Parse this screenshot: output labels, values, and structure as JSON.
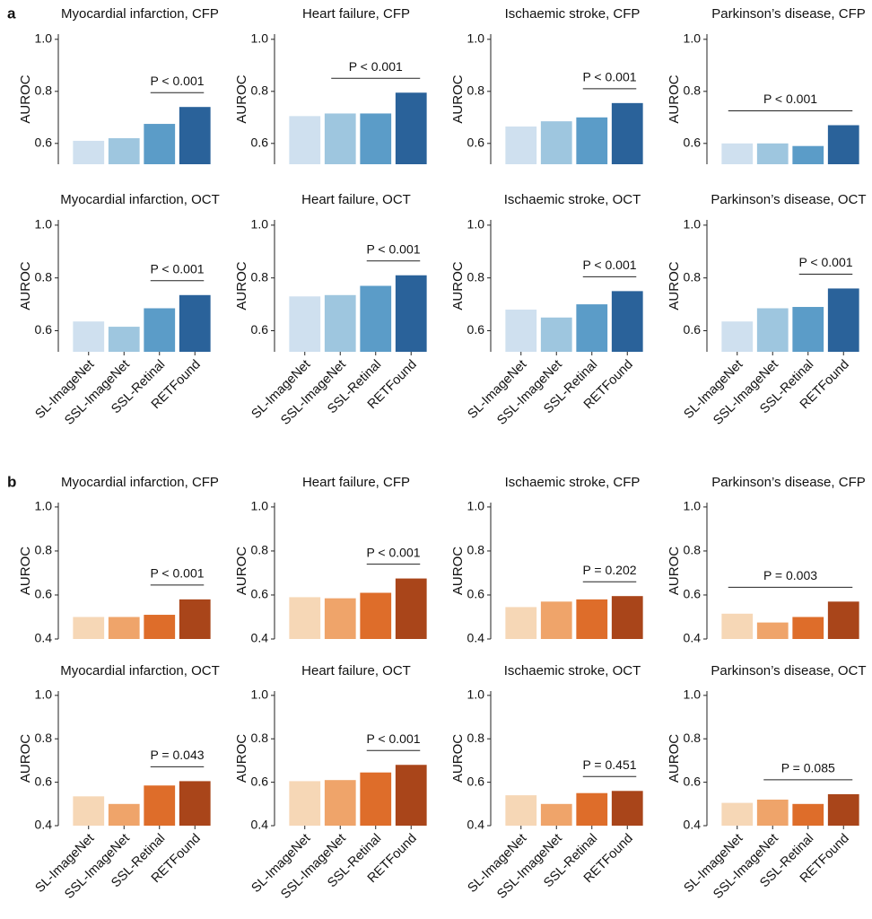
{
  "panel_labels": [
    "a",
    "b"
  ],
  "chart_data": [
    {
      "type": "bar",
      "title": "Myocardial infarction, CFP",
      "y_label": "AUROC",
      "categories": [
        "SL-ImageNet",
        "SSL-ImageNet",
        "SSL-Retinal",
        "RETFound"
      ],
      "values": [
        0.61,
        0.62,
        0.675,
        0.74
      ],
      "colors": [
        "#cfe0ef",
        "#9ec6df",
        "#5b9cc8",
        "#2a629a"
      ],
      "ylim": [
        0.52,
        1.02
      ],
      "yticks": [
        0.6,
        0.8,
        {
          "value": 1,
          "label": "1.0"
        }
      ],
      "p_label": "P < 0.001",
      "comparison": [
        "SSL-Retinal",
        "RETFound"
      ]
    },
    {
      "type": "bar",
      "title": "Heart failure, CFP",
      "y_label": "AUROC",
      "categories": [
        "SL-ImageNet",
        "SSL-ImageNet",
        "SSL-Retinal",
        "RETFound"
      ],
      "values": [
        0.705,
        0.715,
        0.715,
        0.795
      ],
      "colors": [
        "#cfe0ef",
        "#9ec6df",
        "#5b9cc8",
        "#2a629a"
      ],
      "ylim": [
        0.52,
        1.02
      ],
      "yticks": [
        0.6,
        0.8,
        {
          "value": 1,
          "label": "1.0"
        }
      ],
      "p_label": "P < 0.001",
      "comparison": [
        "SSL-ImageNet",
        "RETFound"
      ]
    },
    {
      "type": "bar",
      "title": "Ischaemic stroke, CFP",
      "y_label": "AUROC",
      "categories": [
        "SL-ImageNet",
        "SSL-ImageNet",
        "SSL-Retinal",
        "RETFound"
      ],
      "values": [
        0.665,
        0.685,
        0.7,
        0.755
      ],
      "colors": [
        "#cfe0ef",
        "#9ec6df",
        "#5b9cc8",
        "#2a629a"
      ],
      "ylim": [
        0.52,
        1.02
      ],
      "yticks": [
        0.6,
        0.8,
        {
          "value": 1,
          "label": "1.0"
        }
      ],
      "p_label": "P < 0.001",
      "comparison": [
        "SSL-Retinal",
        "RETFound"
      ]
    },
    {
      "type": "bar",
      "title": "Parkinson’s disease, CFP",
      "y_label": "AUROC",
      "categories": [
        "SL-ImageNet",
        "SSL-ImageNet",
        "SSL-Retinal",
        "RETFound"
      ],
      "values": [
        0.6,
        0.6,
        0.59,
        0.67
      ],
      "colors": [
        "#cfe0ef",
        "#9ec6df",
        "#5b9cc8",
        "#2a629a"
      ],
      "ylim": [
        0.52,
        1.02
      ],
      "yticks": [
        0.6,
        0.8,
        {
          "value": 1,
          "label": "1.0"
        }
      ],
      "p_label": "P < 0.001",
      "comparison": [
        "SL-ImageNet",
        "RETFound"
      ]
    },
    {
      "type": "bar",
      "title": "Myocardial infarction, OCT",
      "y_label": "AUROC",
      "categories": [
        "SL-ImageNet",
        "SSL-ImageNet",
        "SSL-Retinal",
        "RETFound"
      ],
      "values": [
        0.635,
        0.615,
        0.685,
        0.735
      ],
      "colors": [
        "#cfe0ef",
        "#9ec6df",
        "#5b9cc8",
        "#2a629a"
      ],
      "ylim": [
        0.52,
        1.02
      ],
      "yticks": [
        0.6,
        0.8,
        {
          "value": 1,
          "label": "1.0"
        }
      ],
      "p_label": "P < 0.001",
      "comparison": [
        "SSL-Retinal",
        "RETFound"
      ]
    },
    {
      "type": "bar",
      "title": "Heart failure, OCT",
      "y_label": "AUROC",
      "categories": [
        "SL-ImageNet",
        "SSL-ImageNet",
        "SSL-Retinal",
        "RETFound"
      ],
      "values": [
        0.73,
        0.735,
        0.77,
        0.81
      ],
      "colors": [
        "#cfe0ef",
        "#9ec6df",
        "#5b9cc8",
        "#2a629a"
      ],
      "ylim": [
        0.52,
        1.02
      ],
      "yticks": [
        0.6,
        0.8,
        {
          "value": 1,
          "label": "1.0"
        }
      ],
      "p_label": "P < 0.001",
      "comparison": [
        "SSL-Retinal",
        "RETFound"
      ]
    },
    {
      "type": "bar",
      "title": "Ischaemic stroke, OCT",
      "y_label": "AUROC",
      "categories": [
        "SL-ImageNet",
        "SSL-ImageNet",
        "SSL-Retinal",
        "RETFound"
      ],
      "values": [
        0.68,
        0.65,
        0.7,
        0.75
      ],
      "colors": [
        "#cfe0ef",
        "#9ec6df",
        "#5b9cc8",
        "#2a629a"
      ],
      "ylim": [
        0.52,
        1.02
      ],
      "yticks": [
        0.6,
        0.8,
        {
          "value": 1,
          "label": "1.0"
        }
      ],
      "p_label": "P < 0.001",
      "comparison": [
        "SSL-Retinal",
        "RETFound"
      ]
    },
    {
      "type": "bar",
      "title": "Parkinson’s disease, OCT",
      "y_label": "AUROC",
      "categories": [
        "SL-ImageNet",
        "SSL-ImageNet",
        "SSL-Retinal",
        "RETFound"
      ],
      "values": [
        0.635,
        0.685,
        0.69,
        0.76
      ],
      "colors": [
        "#cfe0ef",
        "#9ec6df",
        "#5b9cc8",
        "#2a629a"
      ],
      "ylim": [
        0.52,
        1.02
      ],
      "yticks": [
        0.6,
        0.8,
        {
          "value": 1,
          "label": "1.0"
        }
      ],
      "p_label": "P < 0.001",
      "comparison": [
        "SSL-Retinal",
        "RETFound"
      ]
    },
    {
      "type": "bar",
      "title": "Myocardial infarction, CFP",
      "y_label": "AUROC",
      "categories": [
        "SL-ImageNet",
        "SSL-ImageNet",
        "SSL-Retinal",
        "RETFound"
      ],
      "values": [
        0.5,
        0.5,
        0.51,
        0.58
      ],
      "colors": [
        "#f6d7b6",
        "#efa46a",
        "#de6d2a",
        "#a9451a"
      ],
      "ylim": [
        0.4,
        1.02
      ],
      "yticks": [
        0.4,
        0.6,
        0.8,
        {
          "value": 1,
          "label": "1.0"
        }
      ],
      "p_label": "P < 0.001",
      "comparison": [
        "SSL-Retinal",
        "RETFound"
      ]
    },
    {
      "type": "bar",
      "title": "Heart failure, CFP",
      "y_label": "AUROC",
      "categories": [
        "SL-ImageNet",
        "SSL-ImageNet",
        "SSL-Retinal",
        "RETFound"
      ],
      "values": [
        0.59,
        0.585,
        0.61,
        0.675
      ],
      "colors": [
        "#f6d7b6",
        "#efa46a",
        "#de6d2a",
        "#a9451a"
      ],
      "ylim": [
        0.4,
        1.02
      ],
      "yticks": [
        0.4,
        0.6,
        0.8,
        {
          "value": 1,
          "label": "1.0"
        }
      ],
      "p_label": "P < 0.001",
      "comparison": [
        "SSL-Retinal",
        "RETFound"
      ]
    },
    {
      "type": "bar",
      "title": "Ischaemic stroke, CFP",
      "y_label": "AUROC",
      "categories": [
        "SL-ImageNet",
        "SSL-ImageNet",
        "SSL-Retinal",
        "RETFound"
      ],
      "values": [
        0.545,
        0.57,
        0.58,
        0.595
      ],
      "colors": [
        "#f6d7b6",
        "#efa46a",
        "#de6d2a",
        "#a9451a"
      ],
      "ylim": [
        0.4,
        1.02
      ],
      "yticks": [
        0.4,
        0.6,
        0.8,
        {
          "value": 1,
          "label": "1.0"
        }
      ],
      "p_label": "P = 0.202",
      "comparison": [
        "SSL-Retinal",
        "RETFound"
      ]
    },
    {
      "type": "bar",
      "title": "Parkinson’s disease, CFP",
      "y_label": "AUROC",
      "categories": [
        "SL-ImageNet",
        "SSL-ImageNet",
        "SSL-Retinal",
        "RETFound"
      ],
      "values": [
        0.515,
        0.475,
        0.5,
        0.57
      ],
      "colors": [
        "#f6d7b6",
        "#efa46a",
        "#de6d2a",
        "#a9451a"
      ],
      "ylim": [
        0.4,
        1.02
      ],
      "yticks": [
        0.4,
        0.6,
        0.8,
        {
          "value": 1,
          "label": "1.0"
        }
      ],
      "p_label": "P = 0.003",
      "comparison": [
        "SL-ImageNet",
        "RETFound"
      ]
    },
    {
      "type": "bar",
      "title": "Myocardial infarction, OCT",
      "y_label": "AUROC",
      "categories": [
        "SL-ImageNet",
        "SSL-ImageNet",
        "SSL-Retinal",
        "RETFound"
      ],
      "values": [
        0.535,
        0.5,
        0.585,
        0.605
      ],
      "colors": [
        "#f6d7b6",
        "#efa46a",
        "#de6d2a",
        "#a9451a"
      ],
      "ylim": [
        0.4,
        1.02
      ],
      "yticks": [
        0.4,
        0.6,
        0.8,
        {
          "value": 1,
          "label": "1.0"
        }
      ],
      "p_label": "P = 0.043",
      "comparison": [
        "SSL-Retinal",
        "RETFound"
      ]
    },
    {
      "type": "bar",
      "title": "Heart failure, OCT",
      "y_label": "AUROC",
      "categories": [
        "SL-ImageNet",
        "SSL-ImageNet",
        "SSL-Retinal",
        "RETFound"
      ],
      "values": [
        0.605,
        0.61,
        0.645,
        0.68
      ],
      "colors": [
        "#f6d7b6",
        "#efa46a",
        "#de6d2a",
        "#a9451a"
      ],
      "ylim": [
        0.4,
        1.02
      ],
      "yticks": [
        0.4,
        0.6,
        0.8,
        {
          "value": 1,
          "label": "1.0"
        }
      ],
      "p_label": "P < 0.001",
      "comparison": [
        "SSL-Retinal",
        "RETFound"
      ]
    },
    {
      "type": "bar",
      "title": "Ischaemic stroke, OCT",
      "y_label": "AUROC",
      "categories": [
        "SL-ImageNet",
        "SSL-ImageNet",
        "SSL-Retinal",
        "RETFound"
      ],
      "values": [
        0.54,
        0.5,
        0.55,
        0.56
      ],
      "colors": [
        "#f6d7b6",
        "#efa46a",
        "#de6d2a",
        "#a9451a"
      ],
      "ylim": [
        0.4,
        1.02
      ],
      "yticks": [
        0.4,
        0.6,
        0.8,
        {
          "value": 1,
          "label": "1.0"
        }
      ],
      "p_label": "P = 0.451",
      "comparison": [
        "SSL-Retinal",
        "RETFound"
      ]
    },
    {
      "type": "bar",
      "title": "Parkinson’s disease, OCT",
      "y_label": "AUROC",
      "categories": [
        "SL-ImageNet",
        "SSL-ImageNet",
        "SSL-Retinal",
        "RETFound"
      ],
      "values": [
        0.505,
        0.52,
        0.5,
        0.545
      ],
      "colors": [
        "#f6d7b6",
        "#efa46a",
        "#de6d2a",
        "#a9451a"
      ],
      "ylim": [
        0.4,
        1.02
      ],
      "yticks": [
        0.4,
        0.6,
        0.8,
        {
          "value": 1,
          "label": "1.0"
        }
      ],
      "p_label": "P = 0.085",
      "comparison": [
        "SSL-ImageNet",
        "RETFound"
      ]
    }
  ]
}
